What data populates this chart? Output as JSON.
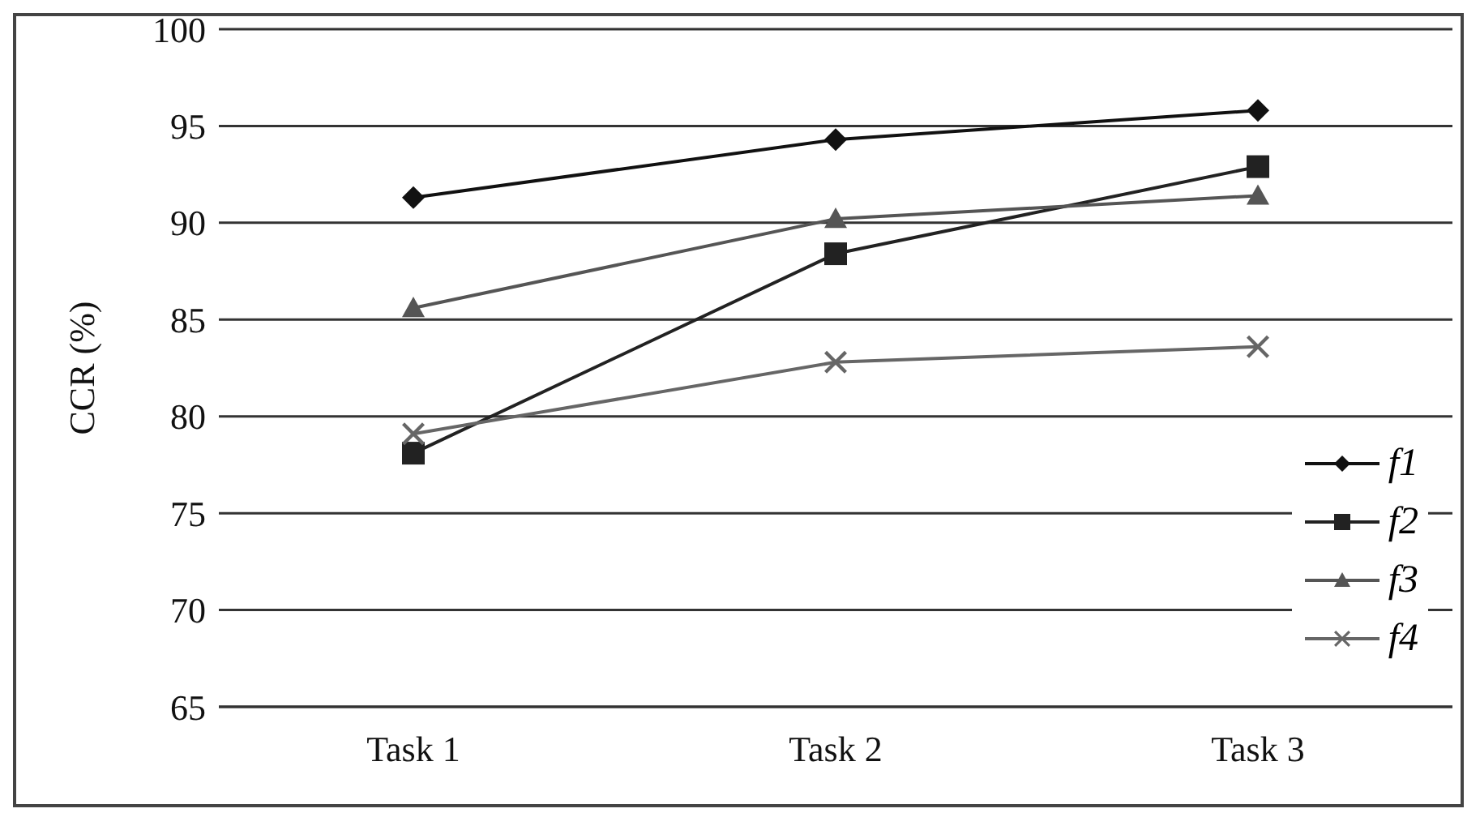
{
  "chart_data": {
    "type": "line",
    "ylabel": "CCR (%)",
    "categories": [
      "Task 1",
      "Task 2",
      "Task 3"
    ],
    "series": [
      {
        "name": "f1",
        "color": "#111111",
        "marker": "diamond",
        "values": [
          91.3,
          94.3,
          95.8
        ]
      },
      {
        "name": "f2",
        "color": "#222222",
        "marker": "square",
        "values": [
          78.1,
          88.4,
          92.9
        ]
      },
      {
        "name": "f3",
        "color": "#555555",
        "marker": "triangle",
        "values": [
          85.6,
          90.2,
          91.4
        ]
      },
      {
        "name": "f4",
        "color": "#666666",
        "marker": "cross",
        "values": [
          79.1,
          82.8,
          83.6
        ]
      }
    ],
    "ylim": [
      65,
      100
    ],
    "yticks": [
      65,
      70,
      75,
      80,
      85,
      90,
      95,
      100
    ],
    "grid": "y",
    "legend": "bottom right",
    "line_style": "solid"
  }
}
